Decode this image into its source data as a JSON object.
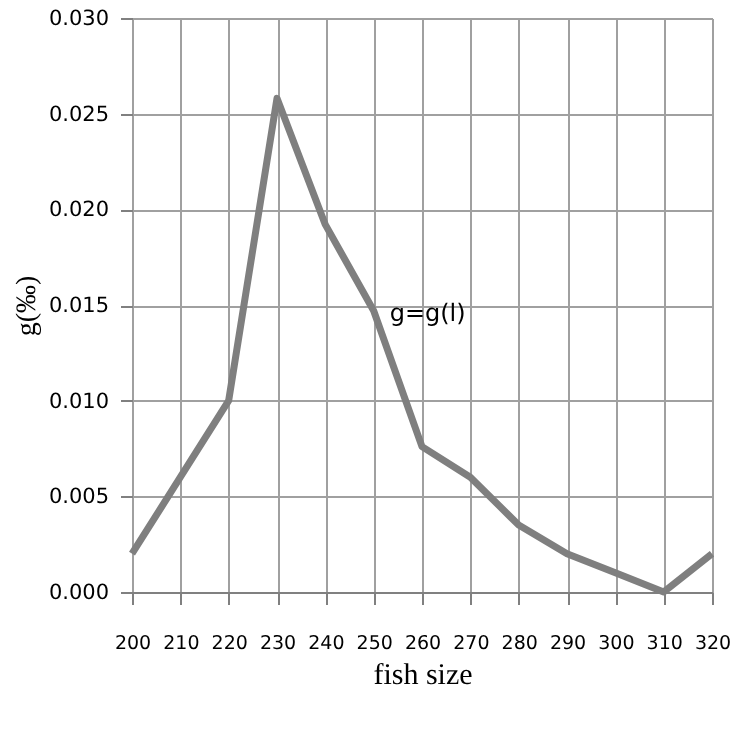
{
  "chart_data": {
    "type": "line",
    "xlabel": "fish size",
    "ylabel": "g(‰)",
    "x": [
      200,
      210,
      220,
      230,
      240,
      250,
      260,
      270,
      280,
      290,
      300,
      310,
      320
    ],
    "series": [
      {
        "name": "g=g(l)",
        "color": "#7f7f7f",
        "values": [
          0.002,
          0.006,
          0.01,
          0.0258,
          0.0192,
          0.0147,
          0.0076,
          0.006,
          0.0035,
          0.002,
          0.001,
          0.0,
          0.002
        ]
      }
    ],
    "xlim": [
      200,
      320
    ],
    "xticks": [
      200,
      210,
      220,
      230,
      240,
      250,
      260,
      270,
      280,
      290,
      300,
      310,
      320
    ],
    "ylim": [
      0,
      0.03
    ],
    "yticks": [
      {
        "value": 0,
        "label": "0.000"
      },
      {
        "value": 0.005,
        "label": "0.005"
      },
      {
        "value": 0.01,
        "label": "0.010"
      },
      {
        "value": 0.015,
        "label": "0.015"
      },
      {
        "value": 0.02,
        "label": "0.020"
      },
      {
        "value": 0.025,
        "label": "0.025"
      },
      {
        "value": 0.03,
        "label": "0.030"
      }
    ],
    "grid": true,
    "marker": "none",
    "line_style": "solid"
  }
}
